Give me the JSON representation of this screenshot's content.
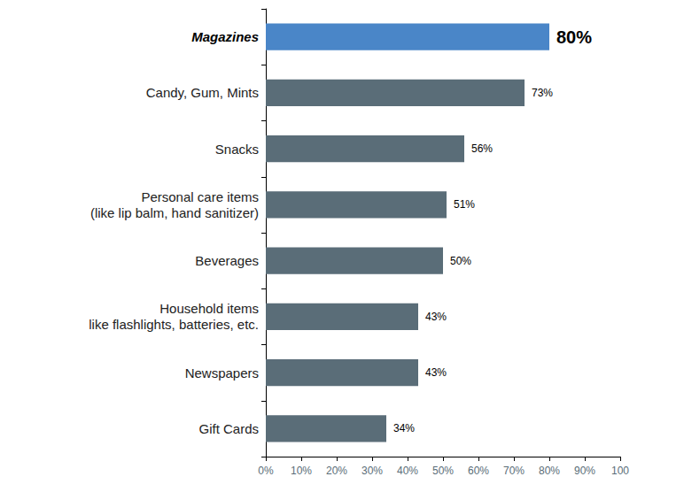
{
  "chart_data": {
    "type": "bar",
    "orientation": "horizontal",
    "categories": [
      "Magazines",
      "Candy, Gum, Mints",
      "Snacks",
      "Personal care items\n(like lip balm, hand sanitizer)",
      "Beverages",
      "Household items\nlike flashlights, batteries, etc.",
      "Newspapers",
      "Gift Cards"
    ],
    "values": [
      80,
      73,
      56,
      51,
      50,
      43,
      43,
      34
    ],
    "value_labels": [
      "80%",
      "73%",
      "56%",
      "51%",
      "50%",
      "43%",
      "43%",
      "34%"
    ],
    "colors": [
      "#4a86c8",
      "#5a6d78",
      "#5a6d78",
      "#5a6d78",
      "#5a6d78",
      "#5a6d78",
      "#5a6d78",
      "#5a6d78"
    ],
    "xlim": [
      0,
      100
    ],
    "xticks": [
      {
        "value": 0,
        "label": "0%"
      },
      {
        "value": 10,
        "label": "10%"
      },
      {
        "value": 20,
        "label": "20%"
      },
      {
        "value": 30,
        "label": "30%"
      },
      {
        "value": 40,
        "label": "40%"
      },
      {
        "value": 50,
        "label": "50%"
      },
      {
        "value": 60,
        "label": "60%"
      },
      {
        "value": 70,
        "label": "70%"
      },
      {
        "value": 80,
        "label": "80%"
      },
      {
        "value": 90,
        "label": "90%"
      },
      {
        "value": 100,
        "label": "100"
      }
    ],
    "grid": false,
    "data_labels": true
  }
}
